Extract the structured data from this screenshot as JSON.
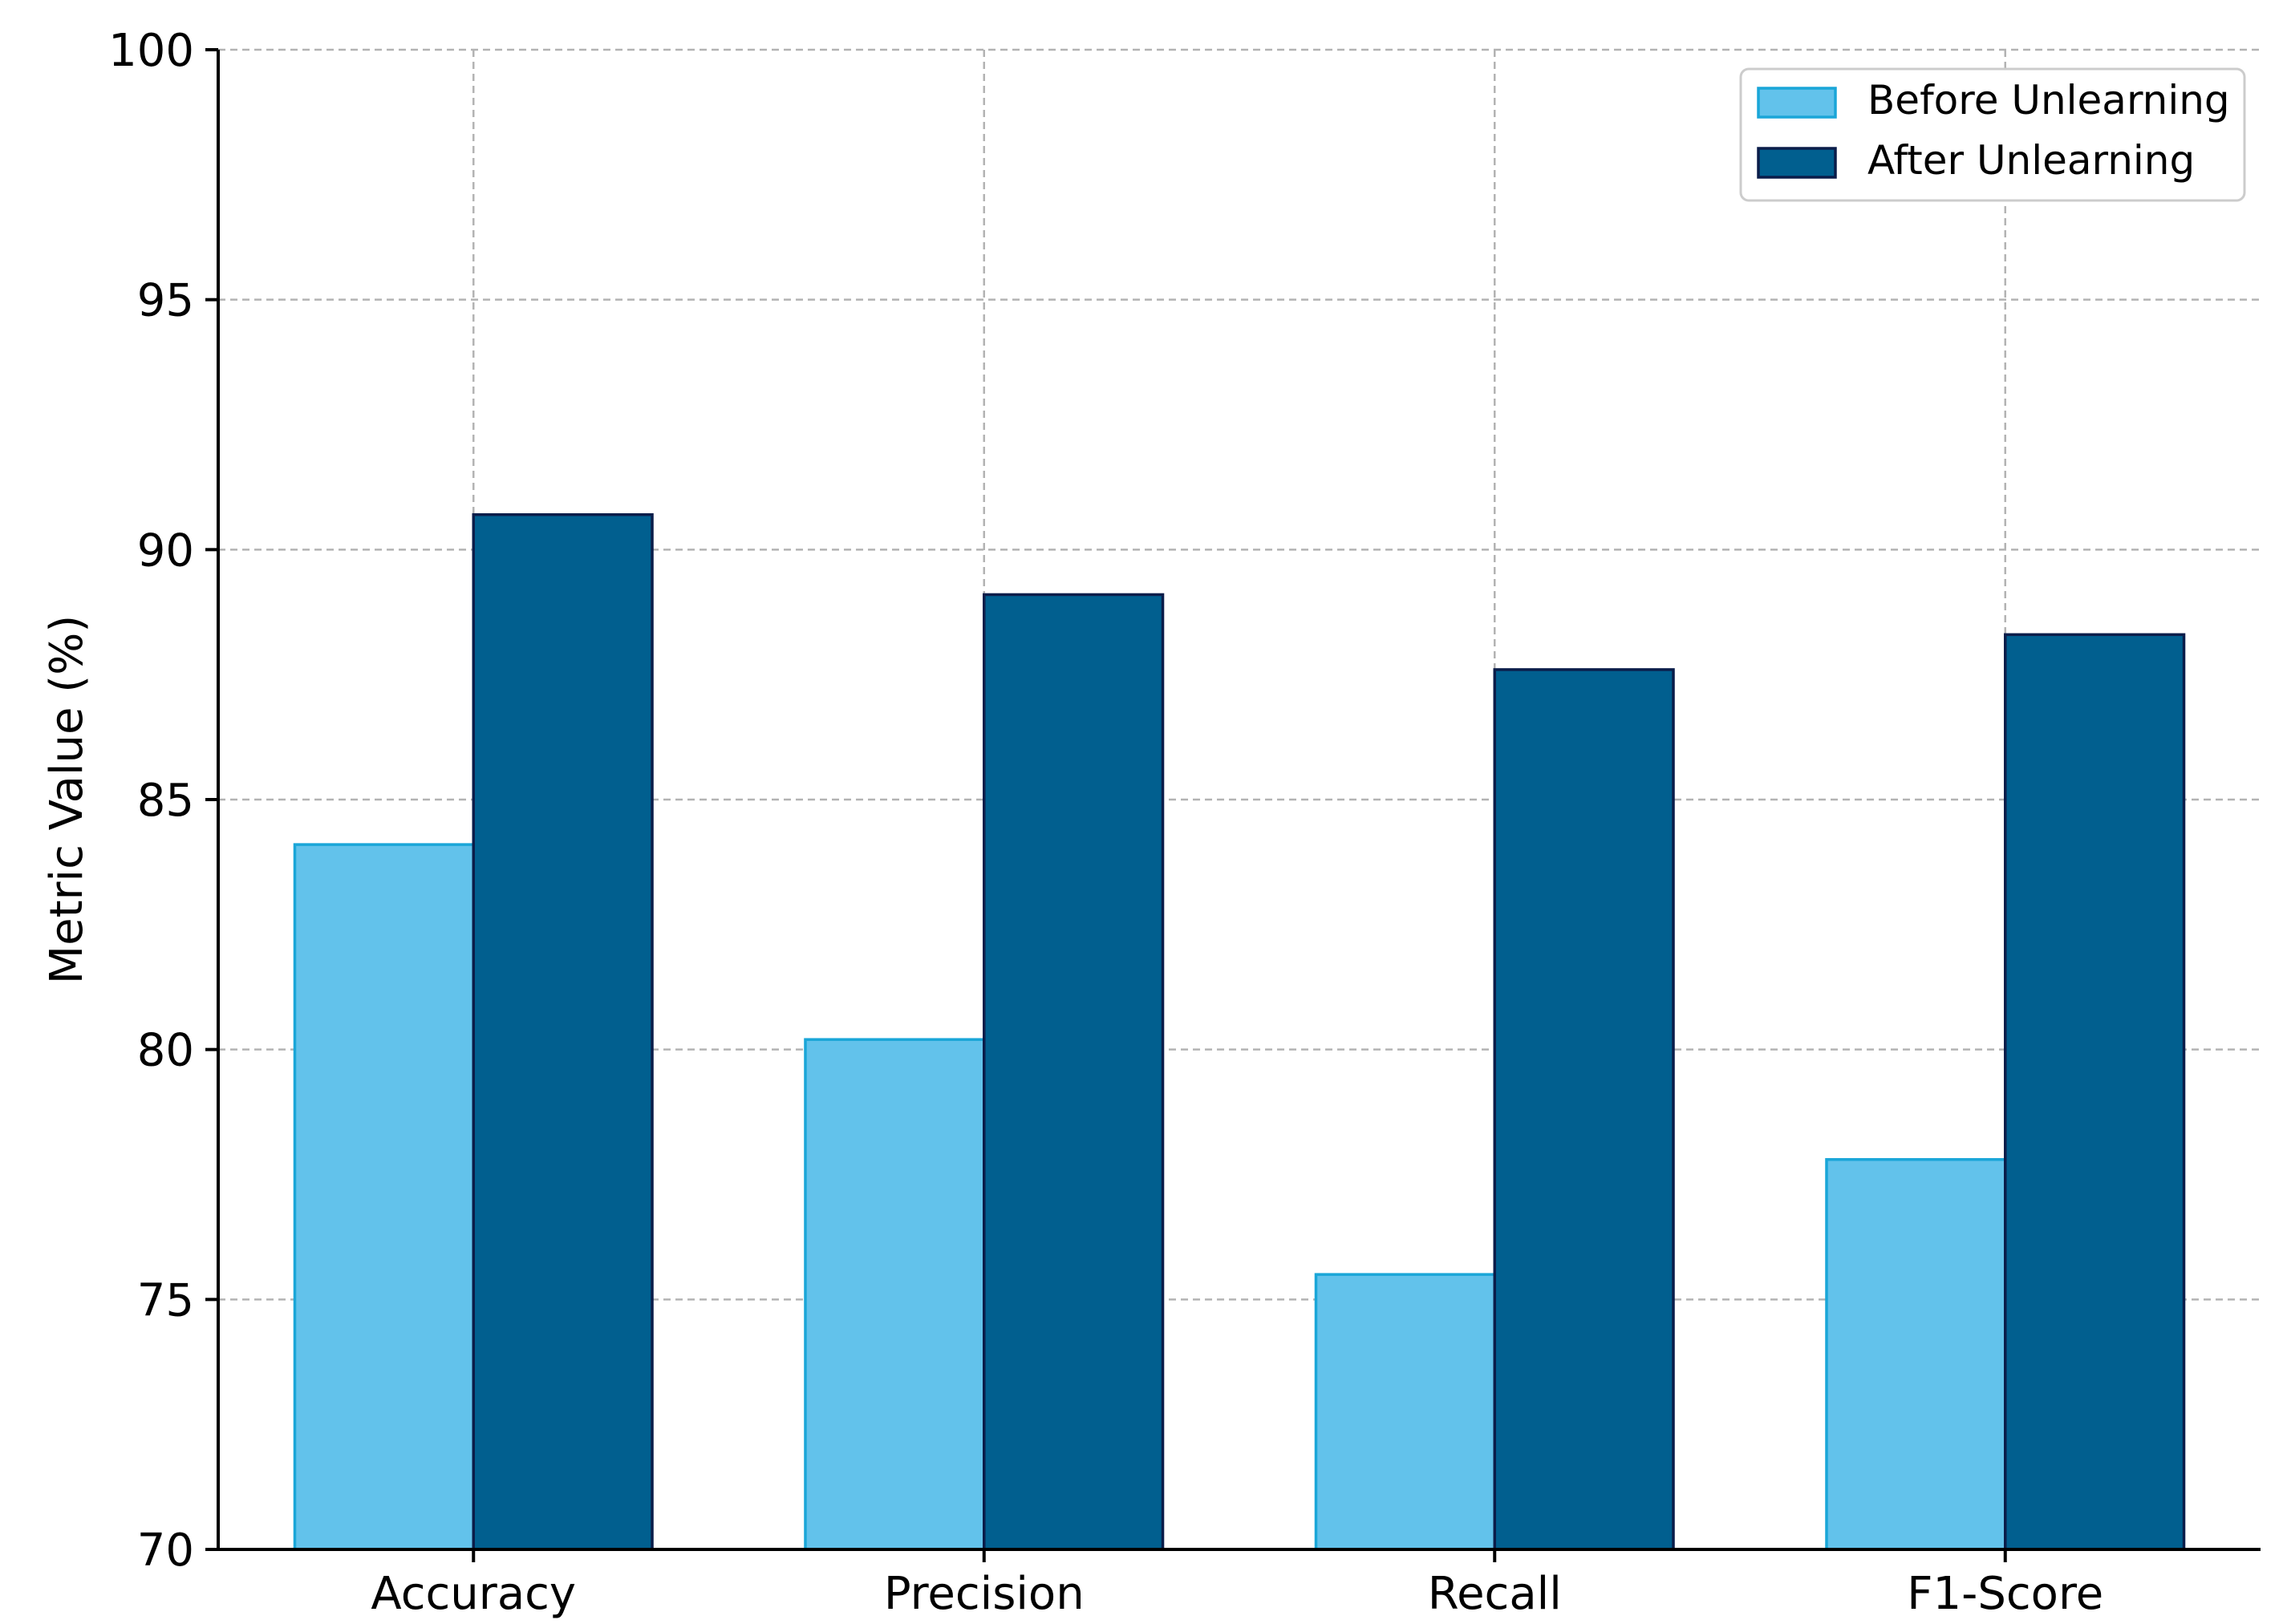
{
  "chart_data": {
    "type": "bar",
    "title": "",
    "xlabel": "",
    "ylabel": "Metric Value (%)",
    "categories": [
      "Accuracy",
      "Precision",
      "Recall",
      "F1-Score"
    ],
    "series": [
      {
        "name": "Before Unlearning",
        "values": [
          84.1,
          80.2,
          75.5,
          77.8
        ],
        "color": "#62c2eb",
        "edge": "#1aa6d8"
      },
      {
        "name": "After Unlearning",
        "values": [
          90.7,
          89.1,
          87.6,
          88.3
        ],
        "color": "#015f8f",
        "edge": "#0b1d4a"
      }
    ],
    "ylim": [
      70,
      100
    ],
    "yticks": [
      70,
      75,
      80,
      85,
      90,
      95,
      100
    ],
    "grid": true,
    "legend": "top-right"
  }
}
